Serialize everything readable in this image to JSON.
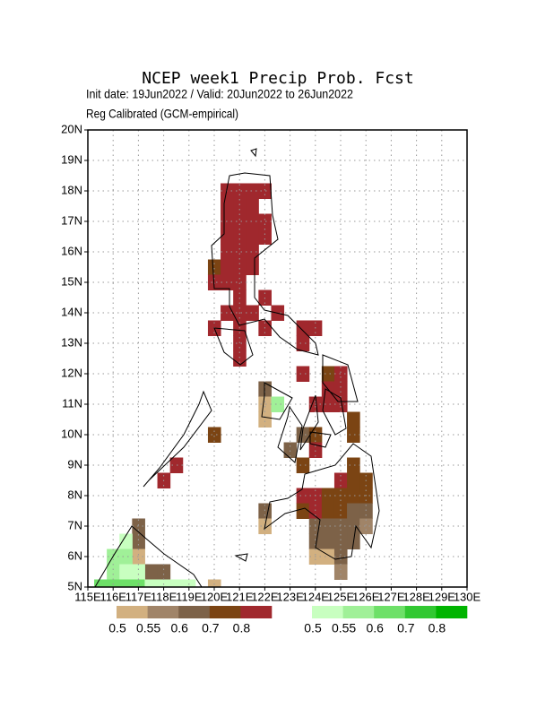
{
  "chart_data": {
    "type": "grid_map",
    "title": "NCEP week1 Precip Prob. Fcst",
    "subtitle": "Init date: 19Jun2022 / Valid: 20Jun2022 to 26Jun2022",
    "note": "Reg Calibrated (GCM-empirical)",
    "xlim": [
      115,
      130
    ],
    "ylim": [
      5,
      20
    ],
    "xticks": [
      {
        "value": 115,
        "label": "115E"
      },
      {
        "value": 116,
        "label": "116E"
      },
      {
        "value": 117,
        "label": "117E"
      },
      {
        "value": 118,
        "label": "118E"
      },
      {
        "value": 119,
        "label": "119E"
      },
      {
        "value": 120,
        "label": "120E"
      },
      {
        "value": 121,
        "label": "121E"
      },
      {
        "value": 122,
        "label": "122E"
      },
      {
        "value": 123,
        "label": "123E"
      },
      {
        "value": 124,
        "label": "124E"
      },
      {
        "value": 125,
        "label": "125E"
      },
      {
        "value": 126,
        "label": "126E"
      },
      {
        "value": 127,
        "label": "127E"
      },
      {
        "value": 128,
        "label": "128E"
      },
      {
        "value": 129,
        "label": "129E"
      },
      {
        "value": 130,
        "label": "130E"
      }
    ],
    "yticks": [
      {
        "value": 5,
        "label": "5N"
      },
      {
        "value": 6,
        "label": "6N"
      },
      {
        "value": 7,
        "label": "7N"
      },
      {
        "value": 8,
        "label": "8N"
      },
      {
        "value": 9,
        "label": "9N"
      },
      {
        "value": 10,
        "label": "10N"
      },
      {
        "value": 11,
        "label": "11N"
      },
      {
        "value": 12,
        "label": "12N"
      },
      {
        "value": 13,
        "label": "13N"
      },
      {
        "value": 14,
        "label": "14N"
      },
      {
        "value": 15,
        "label": "15N"
      },
      {
        "value": 16,
        "label": "16N"
      },
      {
        "value": 17,
        "label": "17N"
      },
      {
        "value": 18,
        "label": "18N"
      },
      {
        "value": 19,
        "label": "19N"
      },
      {
        "value": 20,
        "label": "20N"
      }
    ],
    "grid": true,
    "cell_size": 0.5,
    "dry_scale": {
      "levels": [
        0.5,
        0.55,
        0.6,
        0.7,
        0.8
      ],
      "colors": [
        "#d2b080",
        "#a08468",
        "#7d6248",
        "#7b4413",
        "#a0282d"
      ]
    },
    "wet_scale": {
      "levels": [
        0.5,
        0.55,
        0.6,
        0.7,
        0.8
      ],
      "colors": [
        "#c8ffc0",
        "#a0f098",
        "#6ee068",
        "#32c832",
        "#00b400"
      ]
    },
    "dry_cells": [
      [
        120.5,
        18,
        0.8
      ],
      [
        121,
        18,
        0.8
      ],
      [
        121.5,
        18,
        0.8
      ],
      [
        122,
        18,
        0.8
      ],
      [
        120.5,
        17.5,
        0.8
      ],
      [
        121,
        17.5,
        0.8
      ],
      [
        121.5,
        17.5,
        0.8
      ],
      [
        120.5,
        17,
        0.8
      ],
      [
        121,
        17,
        0.8
      ],
      [
        121.5,
        17,
        0.8
      ],
      [
        122,
        17,
        0.8
      ],
      [
        120.5,
        16.5,
        0.8
      ],
      [
        121,
        16.5,
        0.8
      ],
      [
        121.5,
        16.5,
        0.8
      ],
      [
        122,
        16.5,
        0.8
      ],
      [
        120.5,
        16,
        0.8
      ],
      [
        121,
        16,
        0.8
      ],
      [
        121.5,
        16,
        0.8
      ],
      [
        120,
        15.5,
        0.7
      ],
      [
        120.5,
        15.5,
        0.8
      ],
      [
        121,
        15.5,
        0.8
      ],
      [
        121.5,
        15.5,
        0.8
      ],
      [
        120,
        15,
        0.8
      ],
      [
        120.5,
        15,
        0.8
      ],
      [
        121,
        15,
        0.8
      ],
      [
        121,
        14.5,
        0.8
      ],
      [
        122,
        14.5,
        0.8
      ],
      [
        120.5,
        14,
        0.8
      ],
      [
        121,
        14,
        0.8
      ],
      [
        121.5,
        14,
        0.8
      ],
      [
        122.5,
        14,
        0.8
      ],
      [
        120,
        13.5,
        0.8
      ],
      [
        121,
        13.5,
        0.8
      ],
      [
        122,
        13.5,
        0.8
      ],
      [
        123.5,
        13.5,
        0.8
      ],
      [
        124,
        13.5,
        0.8
      ],
      [
        121,
        13,
        0.8
      ],
      [
        123.5,
        13,
        0.8
      ],
      [
        121,
        12.5,
        0.8
      ],
      [
        123.5,
        12,
        0.8
      ],
      [
        124.5,
        12,
        0.7
      ],
      [
        125,
        12,
        0.8
      ],
      [
        122,
        11.5,
        0.6
      ],
      [
        124.5,
        11.5,
        0.8
      ],
      [
        125,
        11.5,
        0.8
      ],
      [
        122,
        11,
        0.5
      ],
      [
        124,
        11,
        0.8
      ],
      [
        124.5,
        11,
        0.8
      ],
      [
        125,
        11,
        0.8
      ],
      [
        122,
        10.5,
        0.5
      ],
      [
        125.5,
        10.5,
        0.7
      ],
      [
        120,
        10,
        0.7
      ],
      [
        123.5,
        10,
        0.6
      ],
      [
        124,
        10,
        0.7
      ],
      [
        125.5,
        10,
        0.7
      ],
      [
        123,
        9.5,
        0.6
      ],
      [
        124,
        9.5,
        0.8
      ],
      [
        118.5,
        9,
        0.8
      ],
      [
        123.5,
        9,
        0.7
      ],
      [
        125.5,
        9,
        0.7
      ],
      [
        118,
        8.5,
        0.8
      ],
      [
        125,
        8.5,
        0.8
      ],
      [
        125.5,
        8.5,
        0.7
      ],
      [
        126,
        8.5,
        0.7
      ],
      [
        123.5,
        8,
        0.8
      ],
      [
        124,
        8,
        0.8
      ],
      [
        124.5,
        8,
        0.7
      ],
      [
        125,
        8,
        0.7
      ],
      [
        125.5,
        8,
        0.7
      ],
      [
        126,
        8,
        0.7
      ],
      [
        122,
        7.5,
        0.6
      ],
      [
        123.5,
        7.5,
        0.7
      ],
      [
        124,
        7.5,
        0.8
      ],
      [
        124.5,
        7.5,
        0.7
      ],
      [
        125,
        7.5,
        0.7
      ],
      [
        125.5,
        7.5,
        0.6
      ],
      [
        126,
        7.5,
        0.6
      ],
      [
        117,
        7,
        0.6
      ],
      [
        122,
        7,
        0.5
      ],
      [
        124,
        7,
        0.6
      ],
      [
        124.5,
        7,
        0.6
      ],
      [
        125,
        7,
        0.6
      ],
      [
        125.5,
        7,
        0.6
      ],
      [
        126,
        7,
        0.55
      ],
      [
        117,
        6.5,
        0.6
      ],
      [
        124,
        6.5,
        0.6
      ],
      [
        124.5,
        6.5,
        0.6
      ],
      [
        125,
        6.5,
        0.6
      ],
      [
        125.5,
        6.5,
        0.6
      ],
      [
        117,
        6,
        0.5
      ],
      [
        124,
        6,
        0.5
      ],
      [
        124.5,
        6,
        0.5
      ],
      [
        125,
        6,
        0.6
      ],
      [
        117.5,
        5.5,
        0.6
      ],
      [
        118,
        5.5,
        0.6
      ],
      [
        125,
        5.5,
        0.55
      ],
      [
        120,
        5,
        0.5
      ]
    ],
    "wet_cells": [
      [
        122.5,
        11,
        0.55
      ],
      [
        116.5,
        6.5,
        0.5
      ],
      [
        116,
        6,
        0.55
      ],
      [
        116.5,
        6,
        0.55
      ],
      [
        116,
        5.5,
        0.55
      ],
      [
        116.5,
        5.5,
        0.5
      ],
      [
        117,
        5.5,
        0.5
      ],
      [
        115.5,
        5,
        0.6
      ],
      [
        116,
        5,
        0.6
      ],
      [
        116.5,
        5,
        0.6
      ],
      [
        117,
        5,
        0.6
      ],
      [
        117.5,
        5,
        0.5
      ],
      [
        118,
        5,
        0.5
      ],
      [
        118.5,
        5,
        0.5
      ],
      [
        119,
        5,
        0.5
      ]
    ]
  }
}
